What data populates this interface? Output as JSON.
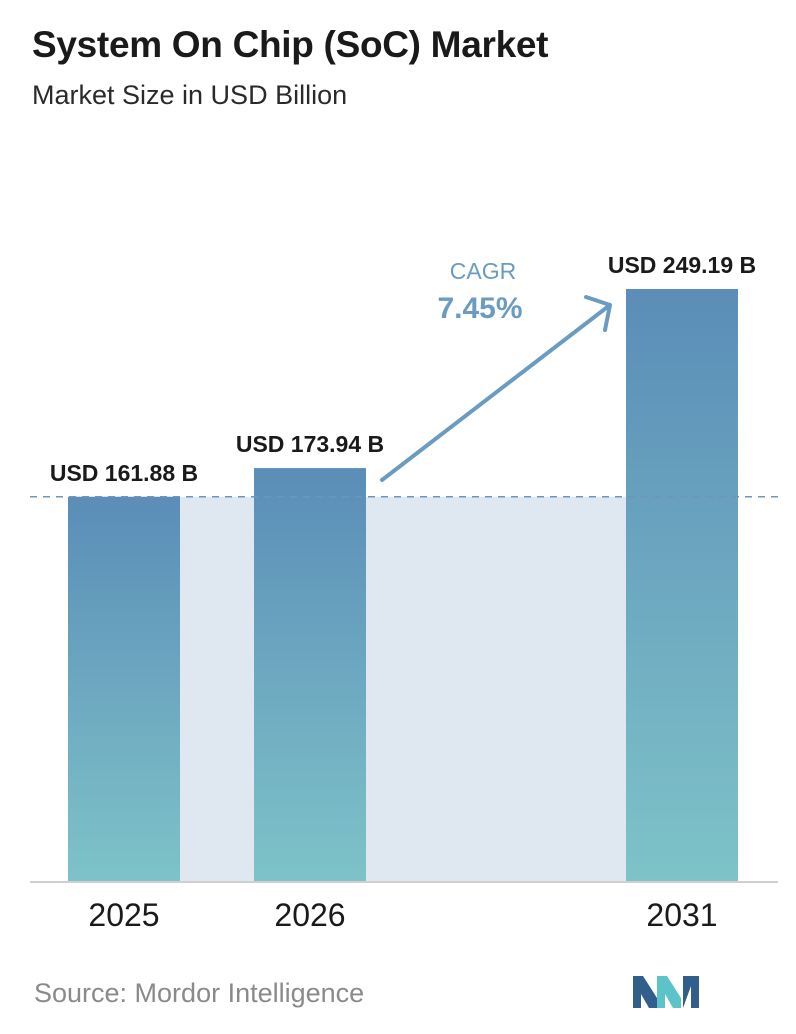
{
  "header": {
    "title": "System On Chip (SoC) Market",
    "subtitle": "Market Size in USD Billion"
  },
  "chart_data": {
    "type": "bar",
    "categories": [
      "2025",
      "2026",
      "2031"
    ],
    "values": [
      161.88,
      173.94,
      249.19
    ],
    "value_labels": [
      "USD 161.88 B",
      "USD 173.94 B",
      "USD 249.19 B"
    ],
    "unit": "USD Billion",
    "ylim": [
      0,
      249.19
    ],
    "grid": false,
    "annotation": {
      "label": "CAGR",
      "value": "7.45%"
    }
  },
  "footer": {
    "source": "Source:  Mordor Intelligence"
  },
  "colors": {
    "bar_top": "#5b8db8",
    "bar_bottom": "#7ec3c8",
    "band": "#dfe8f0",
    "arrow": "#6a9bc1",
    "dashed": "#6d96b8",
    "axis": "#cfcfcf",
    "logo_dark": "#2f5f8a",
    "logo_light": "#5cc3c8"
  }
}
